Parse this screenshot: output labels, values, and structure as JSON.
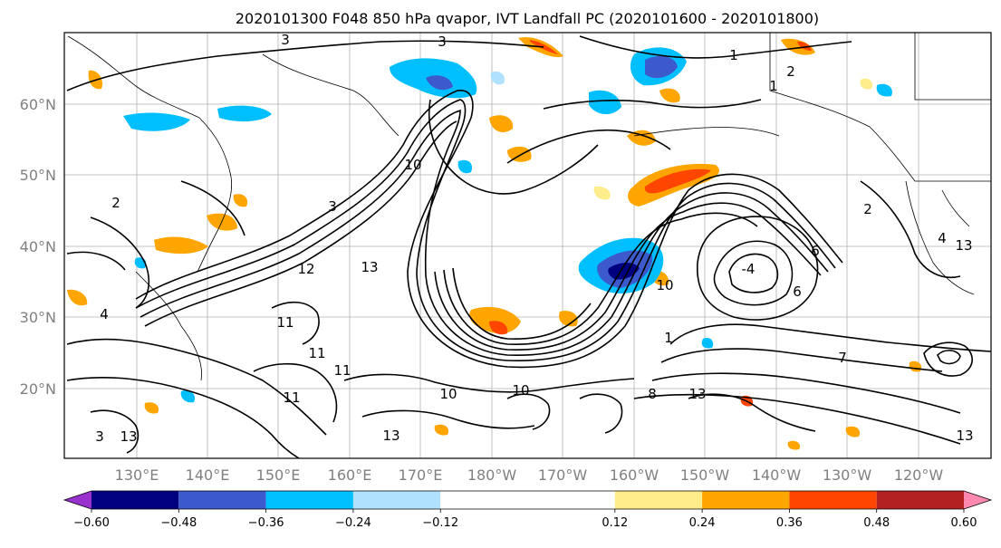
{
  "title": "2020101300 F048 850 hPa qvapor, IVT Landfall PC (2020101600 - 2020101800)",
  "map": {
    "lat_ticks": [
      "60°N",
      "50°N",
      "40°N",
      "30°N",
      "20°N"
    ],
    "lon_ticks": [
      "130°E",
      "140°E",
      "150°E",
      "160°E",
      "170°E",
      "180°W",
      "170°W",
      "160°W",
      "150°W",
      "140°W",
      "130°W",
      "120°W"
    ],
    "contour_labels": [
      "3",
      "3",
      "1",
      "2",
      "1",
      "2",
      "3",
      "10",
      "13",
      "12",
      "11",
      "4",
      "13",
      "11",
      "11",
      "11",
      "10",
      "10",
      "7",
      "13",
      "4",
      "1",
      "-4",
      "6",
      "6",
      "10",
      "3",
      "13",
      "2",
      "8",
      "13",
      "13"
    ],
    "shaded_field": "850 hPa qvapor anomaly (colour fill) with IVT contours (black lines)"
  },
  "colorbar": {
    "ticks": [
      "−0.60",
      "−0.48",
      "−0.36",
      "−0.24",
      "−0.12",
      "0.12",
      "0.24",
      "0.36",
      "0.48",
      "0.60"
    ],
    "bins": [
      {
        "lo": -0.72,
        "hi": -0.6,
        "color": "#9932cc"
      },
      {
        "lo": -0.6,
        "hi": -0.48,
        "color": "#000080"
      },
      {
        "lo": -0.48,
        "hi": -0.36,
        "color": "#3c5acb"
      },
      {
        "lo": -0.36,
        "hi": -0.24,
        "color": "#00bfff"
      },
      {
        "lo": -0.24,
        "hi": -0.12,
        "color": "#b0e2ff"
      },
      {
        "lo": -0.12,
        "hi": 0.12,
        "color": "#ffffff"
      },
      {
        "lo": 0.12,
        "hi": 0.24,
        "color": "#ffec8b"
      },
      {
        "lo": 0.24,
        "hi": 0.36,
        "color": "#ffa500"
      },
      {
        "lo": 0.36,
        "hi": 0.48,
        "color": "#ff4500"
      },
      {
        "lo": 0.48,
        "hi": 0.6,
        "color": "#b22222"
      },
      {
        "lo": 0.6,
        "hi": 0.72,
        "color": "#ff88b0"
      }
    ]
  }
}
